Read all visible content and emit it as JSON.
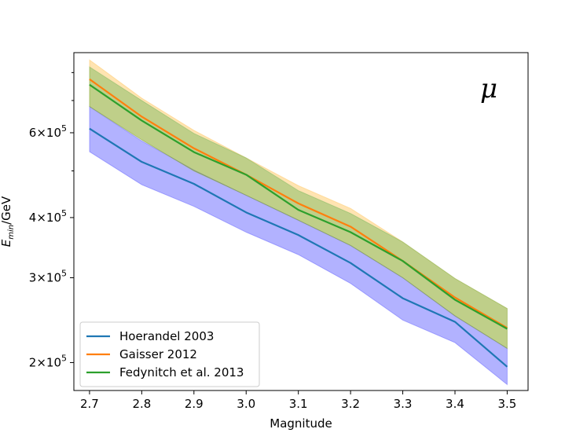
{
  "chart_data": {
    "type": "line",
    "title": "",
    "xlabel": "Magnitude",
    "ylabel_main": "E",
    "ylabel_sub": "min",
    "ylabel_unit": "/GeV",
    "yscale": "log",
    "xlim": [
      2.67,
      3.54
    ],
    "ylim": [
      175000,
      880000
    ],
    "annotation": "μ",
    "x": [
      2.7,
      2.8,
      2.9,
      3.0,
      3.1,
      3.2,
      3.3,
      3.4,
      3.5
    ],
    "x_ticks": [
      {
        "value": 2.7,
        "label": "2.7"
      },
      {
        "value": 2.8,
        "label": "2.8"
      },
      {
        "value": 2.9,
        "label": "2.9"
      },
      {
        "value": 3.0,
        "label": "3.0"
      },
      {
        "value": 3.1,
        "label": "3.1"
      },
      {
        "value": 3.2,
        "label": "3.2"
      },
      {
        "value": 3.3,
        "label": "3.3"
      },
      {
        "value": 3.4,
        "label": "3.4"
      },
      {
        "value": 3.5,
        "label": "3.5"
      }
    ],
    "y_ticks": [
      {
        "value": 200000,
        "mantissa": "2",
        "base": "10",
        "exp": "5"
      },
      {
        "value": 300000,
        "mantissa": "3",
        "base": "10",
        "exp": "5"
      },
      {
        "value": 400000,
        "mantissa": "4",
        "base": "10",
        "exp": "5"
      },
      {
        "value": 600000,
        "mantissa": "6",
        "base": "10",
        "exp": "5"
      }
    ],
    "y_minor_ticks": [
      500000,
      700000,
      800000
    ],
    "series": [
      {
        "name": "Hoerandel 2003",
        "color": "#1f77b4",
        "band_color": "#0000ff",
        "values": [
          612000,
          522000,
          470000,
          410000,
          368000,
          322000,
          272000,
          243000,
          196000
        ],
        "lower": [
          548000,
          468000,
          422000,
          373000,
          335000,
          292000,
          245000,
          220000,
          180000
        ],
        "upper": [
          680000,
          577000,
          502000,
          445000,
          395000,
          350000,
          300000,
          250000,
          214000
        ]
      },
      {
        "name": "Gaisser 2012",
        "color": "#ff7f0e",
        "band_color": "#ffa500",
        "values": [
          775000,
          648000,
          557000,
          491000,
          428000,
          383000,
          325000,
          273000,
          236000
        ],
        "lower": [
          680000,
          580000,
          500000,
          445000,
          395000,
          350000,
          300000,
          250000,
          214000
        ],
        "upper": [
          850000,
          708000,
          607000,
          532000,
          466000,
          418000,
          356000,
          299000,
          259000
        ]
      },
      {
        "name": "Fedynitch et al. 2013",
        "color": "#2ca02c",
        "band_color": "#2ca02c",
        "values": [
          755000,
          636000,
          547000,
          491000,
          415000,
          373000,
          325000,
          270000,
          235000
        ],
        "lower": [
          680000,
          580000,
          500000,
          445000,
          395000,
          350000,
          300000,
          250000,
          214000
        ],
        "upper": [
          822000,
          700000,
          598000,
          532000,
          455000,
          408000,
          356000,
          299000,
          259000
        ]
      }
    ],
    "legend_position": "lower-left"
  }
}
